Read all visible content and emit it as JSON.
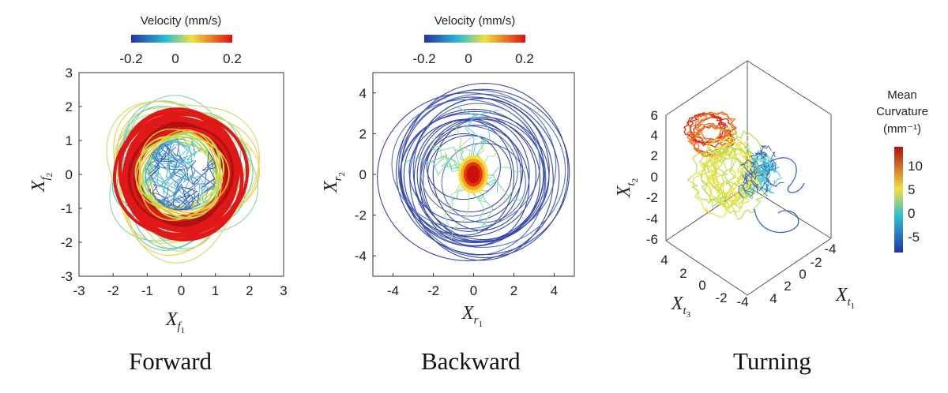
{
  "panels": {
    "forward": {
      "label": "Forward",
      "colorbar": {
        "title": "Velocity (mm/s)",
        "ticks": [
          "-0.2",
          "0",
          "0.2"
        ]
      },
      "x_axis_symbol": "X",
      "x_axis_sub": "f",
      "x_axis_subsub": "1",
      "y_axis_symbol": "X",
      "y_axis_sub": "f",
      "y_axis_subsub": "2",
      "x_ticks": [
        "-3",
        "-2",
        "-1",
        "0",
        "1",
        "2",
        "3"
      ],
      "y_ticks": [
        "3",
        "2",
        "1",
        "0",
        "-1",
        "-2",
        "-3"
      ]
    },
    "backward": {
      "label": "Backward",
      "colorbar": {
        "title": "Velocity (mm/s)",
        "ticks": [
          "-0.2",
          "0",
          "0.2"
        ]
      },
      "x_axis_symbol": "X",
      "x_axis_sub": "r",
      "x_axis_subsub": "1",
      "y_axis_symbol": "X",
      "y_axis_sub": "r",
      "y_axis_subsub": "2",
      "x_ticks": [
        "-4",
        "-2",
        "0",
        "2",
        "4"
      ],
      "y_ticks": [
        "4",
        "2",
        "0",
        "-2",
        "-4"
      ]
    },
    "turning": {
      "label": "Turning",
      "colorbar": {
        "title_line1": "Mean",
        "title_line2": "Curvature",
        "title_line3": "(mm⁻¹)",
        "ticks": [
          "10",
          "5",
          "0",
          "-5"
        ]
      },
      "x_axis_symbol": "X",
      "x_axis_sub": "t",
      "x_axis_subsub": "1",
      "y_axis_symbol": "X",
      "y_axis_sub": "t",
      "y_axis_subsub": "2",
      "z_axis_symbol": "X",
      "z_axis_sub": "t",
      "z_axis_subsub": "3",
      "v_ticks": [
        "6",
        "4",
        "2",
        "0",
        "-2",
        "-4",
        "-6"
      ],
      "x1_ticks": [
        "-4",
        "-2",
        "0",
        "2",
        "4"
      ],
      "x3_ticks": [
        "4",
        "2",
        "0",
        "-2",
        "-4"
      ]
    }
  },
  "chart_data": [
    {
      "type": "line",
      "title": "Forward",
      "xlim": [
        -3,
        3
      ],
      "ylim": [
        -3,
        3
      ],
      "color_scale": {
        "name": "Velocity (mm/s)",
        "range": [
          -0.2,
          0.2
        ],
        "colors": [
          "#2233aa",
          "#30c0d0",
          "#f0e040",
          "#e01010"
        ]
      },
      "series": [
        {
          "values": [
            [
              -0.3,
              0.1
            ],
            [
              0.2,
              -0.2
            ],
            [
              -0.1,
              0.3
            ],
            [
              0.3,
              0.2
            ],
            [
              -0.4,
              -0.3
            ],
            [
              0.1,
              0.4
            ],
            [
              -0.2,
              -0.1
            ],
            [
              0.3,
              -0.3
            ]
          ]
        },
        {
          "values": [
            [
              -1.2,
              0.9
            ],
            [
              0.1,
              1.6
            ],
            [
              1.3,
              0.8
            ],
            [
              1.4,
              -0.6
            ],
            [
              0.1,
              -1.6
            ],
            [
              -1.3,
              -0.9
            ],
            [
              -1.5,
              0.3
            ],
            [
              -1.2,
              0.9
            ]
          ]
        },
        {
          "values": [
            [
              -1.7,
              0.6
            ],
            [
              -0.5,
              1.8
            ],
            [
              0.9,
              1.7
            ],
            [
              1.7,
              0.5
            ],
            [
              1.7,
              -0.8
            ],
            [
              0.4,
              -1.9
            ],
            [
              -1.0,
              -1.7
            ],
            [
              -1.8,
              -0.5
            ],
            [
              -1.7,
              0.6
            ]
          ]
        },
        {
          "values": [
            [
              -2.0,
              0.8
            ],
            [
              -0.9,
              2.2
            ],
            [
              0.9,
              2.3
            ],
            [
              2.0,
              1.0
            ],
            [
              2.3,
              -0.2
            ],
            [
              1.6,
              -1.6
            ],
            [
              0.1,
              -2.1
            ],
            [
              -1.5,
              -1.6
            ],
            [
              -2.1,
              -0.4
            ],
            [
              -2.0,
              0.8
            ]
          ]
        }
      ]
    },
    {
      "type": "line",
      "title": "Backward",
      "xlim": [
        -5,
        5
      ],
      "ylim": [
        -5,
        5
      ],
      "color_scale": {
        "name": "Velocity (mm/s)",
        "range": [
          -0.2,
          0.2
        ],
        "colors": [
          "#2233aa",
          "#30c0d0",
          "#f0e040",
          "#e01010"
        ]
      },
      "series": [
        {
          "values": [
            [
              -0.1,
              0.2
            ],
            [
              0.3,
              0.1
            ],
            [
              0.1,
              -0.4
            ],
            [
              -0.3,
              -0.1
            ],
            [
              -0.1,
              0.2
            ]
          ]
        },
        {
          "values": [
            [
              -2.5,
              1.5
            ],
            [
              -1.0,
              2.4
            ],
            [
              1.0,
              2.0
            ],
            [
              2.0,
              0.5
            ],
            [
              1.5,
              -1.5
            ],
            [
              -0.5,
              -2.2
            ],
            [
              -2.2,
              -1.0
            ],
            [
              -2.5,
              1.5
            ]
          ]
        },
        {
          "values": [
            [
              -4.0,
              1.0
            ],
            [
              -2.6,
              3.6
            ],
            [
              0.5,
              4.4
            ],
            [
              3.3,
              3.0
            ],
            [
              4.4,
              0.2
            ],
            [
              3.6,
              -2.8
            ],
            [
              0.8,
              -4.3
            ],
            [
              -2.5,
              -3.7
            ],
            [
              -4.2,
              -1.5
            ],
            [
              -4.0,
              1.0
            ]
          ]
        },
        {
          "values": [
            [
              -3.6,
              -0.8
            ],
            [
              -2.9,
              2.8
            ],
            [
              -0.2,
              4.0
            ],
            [
              2.7,
              3.4
            ],
            [
              4.0,
              0.8
            ],
            [
              3.4,
              -2.6
            ],
            [
              0.3,
              -4.6
            ],
            [
              -3.0,
              -3.2
            ],
            [
              -3.6,
              -0.8
            ]
          ]
        }
      ]
    },
    {
      "type": "line",
      "title": "Turning",
      "zlim": [
        -6,
        6
      ],
      "color_scale": {
        "name": "Mean Curvature (mm⁻¹)",
        "range": [
          -8,
          14
        ],
        "colors": [
          "#2233aa",
          "#30c0d0",
          "#f0e040",
          "#e01010"
        ]
      },
      "series": [
        {
          "values": [
            [
              0,
              4.5
            ],
            [
              1,
              5.5
            ],
            [
              2,
              4.0
            ],
            [
              1.5,
              2.0
            ],
            [
              0.5,
              1.0
            ]
          ]
        },
        {
          "values": [
            [
              0,
              2.0
            ],
            [
              0.5,
              0.0
            ],
            [
              0.2,
              -2.0
            ],
            [
              1.0,
              -3.0
            ],
            [
              2.0,
              -2.0
            ]
          ]
        },
        {
          "values": [
            [
              3.0,
              1.0
            ],
            [
              3.5,
              0.0
            ],
            [
              3.0,
              -1.0
            ],
            [
              2.8,
              0.5
            ]
          ]
        },
        {
          "values": [
            [
              2.0,
              -3.5
            ],
            [
              3.5,
              -3.8
            ],
            [
              4.0,
              -2.5
            ]
          ]
        }
      ]
    }
  ]
}
